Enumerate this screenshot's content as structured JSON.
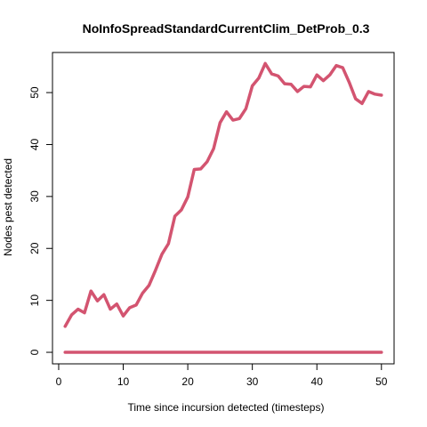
{
  "chart_data": {
    "type": "line",
    "title": "NoInfoSpreadStandardCurrentClim_DetProb_0.3",
    "xlabel": "Time since incursion detected (timesteps)",
    "ylabel": "Nodes pest detected",
    "xlim": [
      -0.96,
      51.96
    ],
    "ylim": [
      -2.22,
      57.72
    ],
    "xticks": [
      0,
      10,
      20,
      30,
      40,
      50
    ],
    "yticks": [
      0,
      10,
      20,
      30,
      40,
      50
    ],
    "grid": false,
    "legend": "none",
    "color": "#d35470",
    "series": [
      {
        "x": [
          1,
          2,
          3,
          4,
          5,
          6,
          7,
          8,
          9,
          10,
          11,
          12,
          13,
          14,
          15,
          16,
          17,
          18,
          19,
          20,
          21,
          22,
          23,
          24,
          25,
          26,
          27,
          28,
          29,
          30,
          31,
          32,
          33,
          34,
          35,
          36,
          37,
          38,
          39,
          40,
          41,
          42,
          43,
          44,
          45,
          46,
          47,
          48,
          49,
          50
        ],
        "values": [
          5.0,
          7.2,
          8.3,
          7.6,
          11.8,
          9.9,
          11.1,
          8.3,
          9.3,
          7.0,
          8.6,
          9.1,
          11.4,
          12.9,
          15.8,
          18.9,
          20.9,
          26.2,
          27.4,
          29.9,
          35.2,
          35.3,
          36.7,
          39.2,
          44.2,
          46.3,
          44.7,
          45.0,
          46.9,
          51.3,
          52.8,
          55.6,
          53.6,
          53.2,
          51.7,
          51.6,
          50.2,
          51.2,
          51.1,
          53.4,
          52.3,
          53.4,
          55.2,
          54.8,
          52.0,
          48.8,
          47.9,
          50.2,
          49.7,
          49.5
        ]
      },
      {
        "x": [
          1,
          50
        ],
        "values": [
          0,
          0
        ]
      }
    ]
  }
}
